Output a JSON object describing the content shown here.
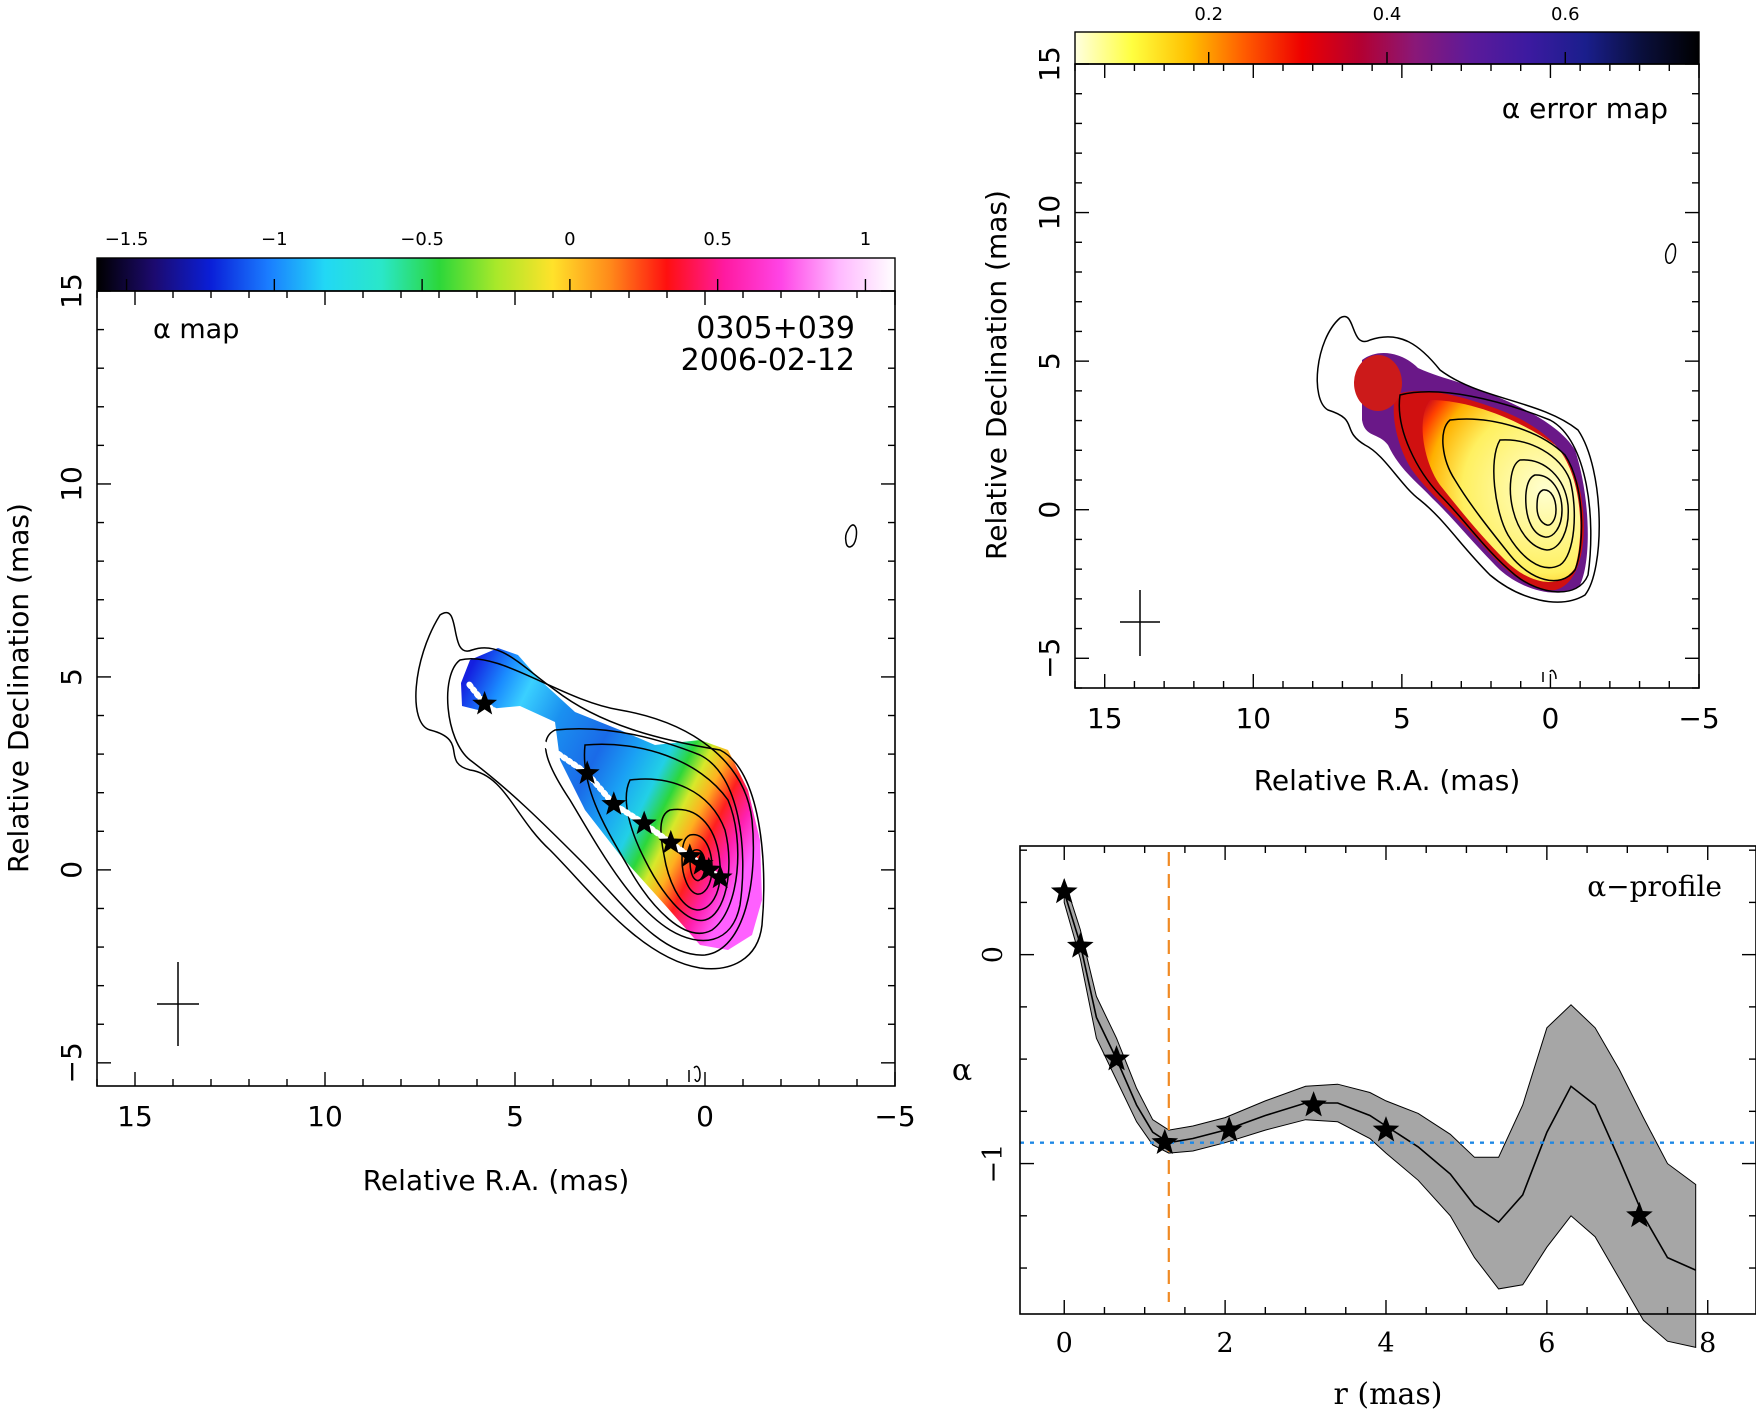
{
  "chart_data": [
    {
      "id": "alpha-map",
      "type": "heatmap",
      "annotation_left": "α map",
      "source": "0305+039",
      "date": "2006-02-12",
      "xlabel": "Relative R.A. (mas)",
      "ylabel": "Relative Declination (mas)",
      "xlim": [
        16,
        -5
      ],
      "ylim": [
        -5.6,
        15
      ],
      "xticks": [
        15,
        10,
        5,
        0,
        -5
      ],
      "yticks": [
        -5,
        0,
        5,
        10,
        15
      ],
      "colorbar": {
        "range": [
          -1.6,
          1.1
        ],
        "ticks": [
          -1.5,
          -1,
          -0.5,
          0,
          0.5,
          1
        ],
        "stops": [
          "#000000",
          "#1c0a6e",
          "#0a1fd8",
          "#1a7cff",
          "#22d8f5",
          "#2ae7c8",
          "#2cd73a",
          "#a8e82a",
          "#ffe22a",
          "#ff8a1a",
          "#ff1010",
          "#ff1aa0",
          "#ff44e6",
          "#ffb8ff",
          "#ffffff"
        ]
      },
      "ridge_points": [
        {
          "ra": 5.8,
          "dec": 4.3
        },
        {
          "ra": 3.1,
          "dec": 2.5
        },
        {
          "ra": 2.4,
          "dec": 1.7
        },
        {
          "ra": 1.6,
          "dec": 1.2
        },
        {
          "ra": 0.9,
          "dec": 0.7
        },
        {
          "ra": 0.4,
          "dec": 0.35
        },
        {
          "ra": 0.1,
          "dec": 0.15
        },
        {
          "ra": -0.1,
          "dec": 0.0
        },
        {
          "ra": -0.4,
          "dec": -0.2
        }
      ]
    },
    {
      "id": "alpha-error-map",
      "type": "heatmap",
      "annotation": "α error map",
      "xlabel": "Relative R.A. (mas)",
      "ylabel": "Relative Declination (mas)",
      "xlim": [
        16,
        -5
      ],
      "ylim": [
        -6,
        15
      ],
      "xticks": [
        15,
        10,
        5,
        0,
        -5
      ],
      "yticks": [
        -5,
        0,
        5,
        10,
        15
      ],
      "colorbar": {
        "range": [
          0.05,
          0.75
        ],
        "ticks": [
          0.2,
          0.4,
          0.6
        ],
        "stops": [
          "#ffffe0",
          "#ffff40",
          "#ffc000",
          "#ff5a00",
          "#ee0000",
          "#b40030",
          "#8a1878",
          "#5c1a9a",
          "#3c1aa0",
          "#1a1e8c",
          "#0a0f3c",
          "#000000"
        ]
      }
    },
    {
      "id": "alpha-profile",
      "type": "line",
      "annotation": "α−profile",
      "xlabel": "r (mas)",
      "ylabel": "α",
      "xlim": [
        -0.55,
        8.6
      ],
      "ylim": [
        -1.72,
        0.52
      ],
      "xticks": [
        0,
        2,
        4,
        6,
        8
      ],
      "yticks": [
        -1,
        0
      ],
      "reference_alpha": -0.9,
      "reference_r": 1.3,
      "series": [
        {
          "r": [
            0.0,
            0.2,
            0.4,
            0.65,
            0.9,
            1.1,
            1.3,
            1.6,
            2.0,
            2.5,
            3.0,
            3.4,
            3.8,
            4.0,
            4.4,
            4.8,
            5.1,
            5.4,
            5.7,
            6.0,
            6.3,
            6.6,
            6.9,
            7.2,
            7.5,
            7.85
          ],
          "alpha": [
            0.3,
            0.05,
            -0.3,
            -0.5,
            -0.72,
            -0.85,
            -0.9,
            -0.88,
            -0.84,
            -0.77,
            -0.71,
            -0.71,
            -0.77,
            -0.82,
            -0.92,
            -1.05,
            -1.2,
            -1.28,
            -1.15,
            -0.85,
            -0.63,
            -0.72,
            -0.98,
            -1.25,
            -1.45,
            -1.51
          ],
          "alpha_low": [
            0.25,
            -0.02,
            -0.4,
            -0.6,
            -0.8,
            -0.91,
            -0.95,
            -0.94,
            -0.9,
            -0.84,
            -0.79,
            -0.8,
            -0.88,
            -0.95,
            -1.08,
            -1.25,
            -1.45,
            -1.6,
            -1.58,
            -1.4,
            -1.25,
            -1.35,
            -1.55,
            -1.75,
            -1.85,
            -1.88
          ],
          "alpha_high": [
            0.36,
            0.12,
            -0.2,
            -0.4,
            -0.64,
            -0.79,
            -0.84,
            -0.82,
            -0.78,
            -0.7,
            -0.63,
            -0.62,
            -0.66,
            -0.7,
            -0.76,
            -0.86,
            -0.97,
            -0.97,
            -0.72,
            -0.35,
            -0.24,
            -0.35,
            -0.55,
            -0.78,
            -1.0,
            -1.1
          ]
        }
      ],
      "markers": [
        {
          "r": 0.0,
          "alpha": 0.3
        },
        {
          "r": 0.2,
          "alpha": 0.04
        },
        {
          "r": 0.65,
          "alpha": -0.5
        },
        {
          "r": 1.25,
          "alpha": -0.9
        },
        {
          "r": 2.05,
          "alpha": -0.84
        },
        {
          "r": 3.1,
          "alpha": -0.72
        },
        {
          "r": 4.0,
          "alpha": -0.84
        },
        {
          "r": 7.15,
          "alpha": -1.25
        }
      ]
    }
  ]
}
